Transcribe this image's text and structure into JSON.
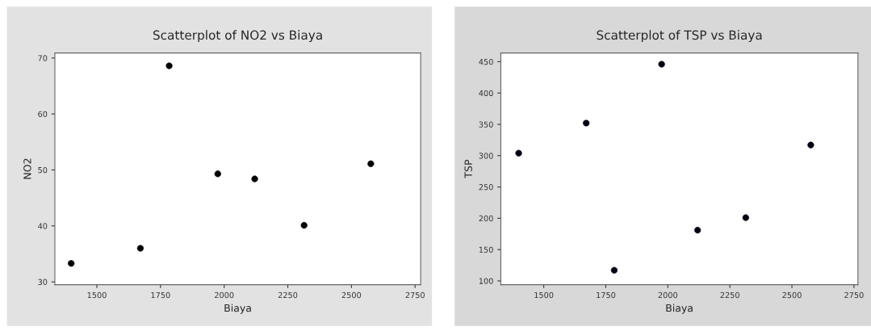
{
  "chart_data": [
    {
      "type": "scatter",
      "title": "Scatterplot of NO2 vs Biaya",
      "xlabel": "Biaya",
      "ylabel": "NO2",
      "x": [
        1399,
        1671,
        1784,
        1975,
        2120,
        2314,
        2576
      ],
      "series": [
        {
          "color": "#000000",
          "values": [
            33.3,
            36.0,
            68.6,
            49.3,
            48.4,
            40.1,
            51.1
          ]
        }
      ],
      "xlim": [
        1335,
        2772
      ],
      "xticks": [
        1500,
        1750,
        2000,
        2250,
        2500,
        2750
      ],
      "ylim": [
        29.5,
        70.9
      ],
      "yticks": [
        30,
        40,
        50,
        60,
        70
      ],
      "grid": false,
      "marker": "circle"
    },
    {
      "type": "scatter",
      "title": "Scatterplot of TSP vs Biaya",
      "xlabel": "Biaya",
      "ylabel": "TSP",
      "x": [
        1399,
        1671,
        1784,
        1975,
        2120,
        2314,
        2576
      ],
      "series": [
        {
          "color": "#000010",
          "values": [
            304,
            352,
            117,
            446,
            181,
            201,
            317
          ]
        }
      ],
      "xlim": [
        1327,
        2766
      ],
      "xticks": [
        1500,
        1750,
        2000,
        2250,
        2500,
        2750
      ],
      "ylim": [
        94,
        464
      ],
      "yticks": [
        100,
        150,
        200,
        250,
        300,
        350,
        400,
        450
      ],
      "grid": false,
      "marker": "circle"
    }
  ]
}
